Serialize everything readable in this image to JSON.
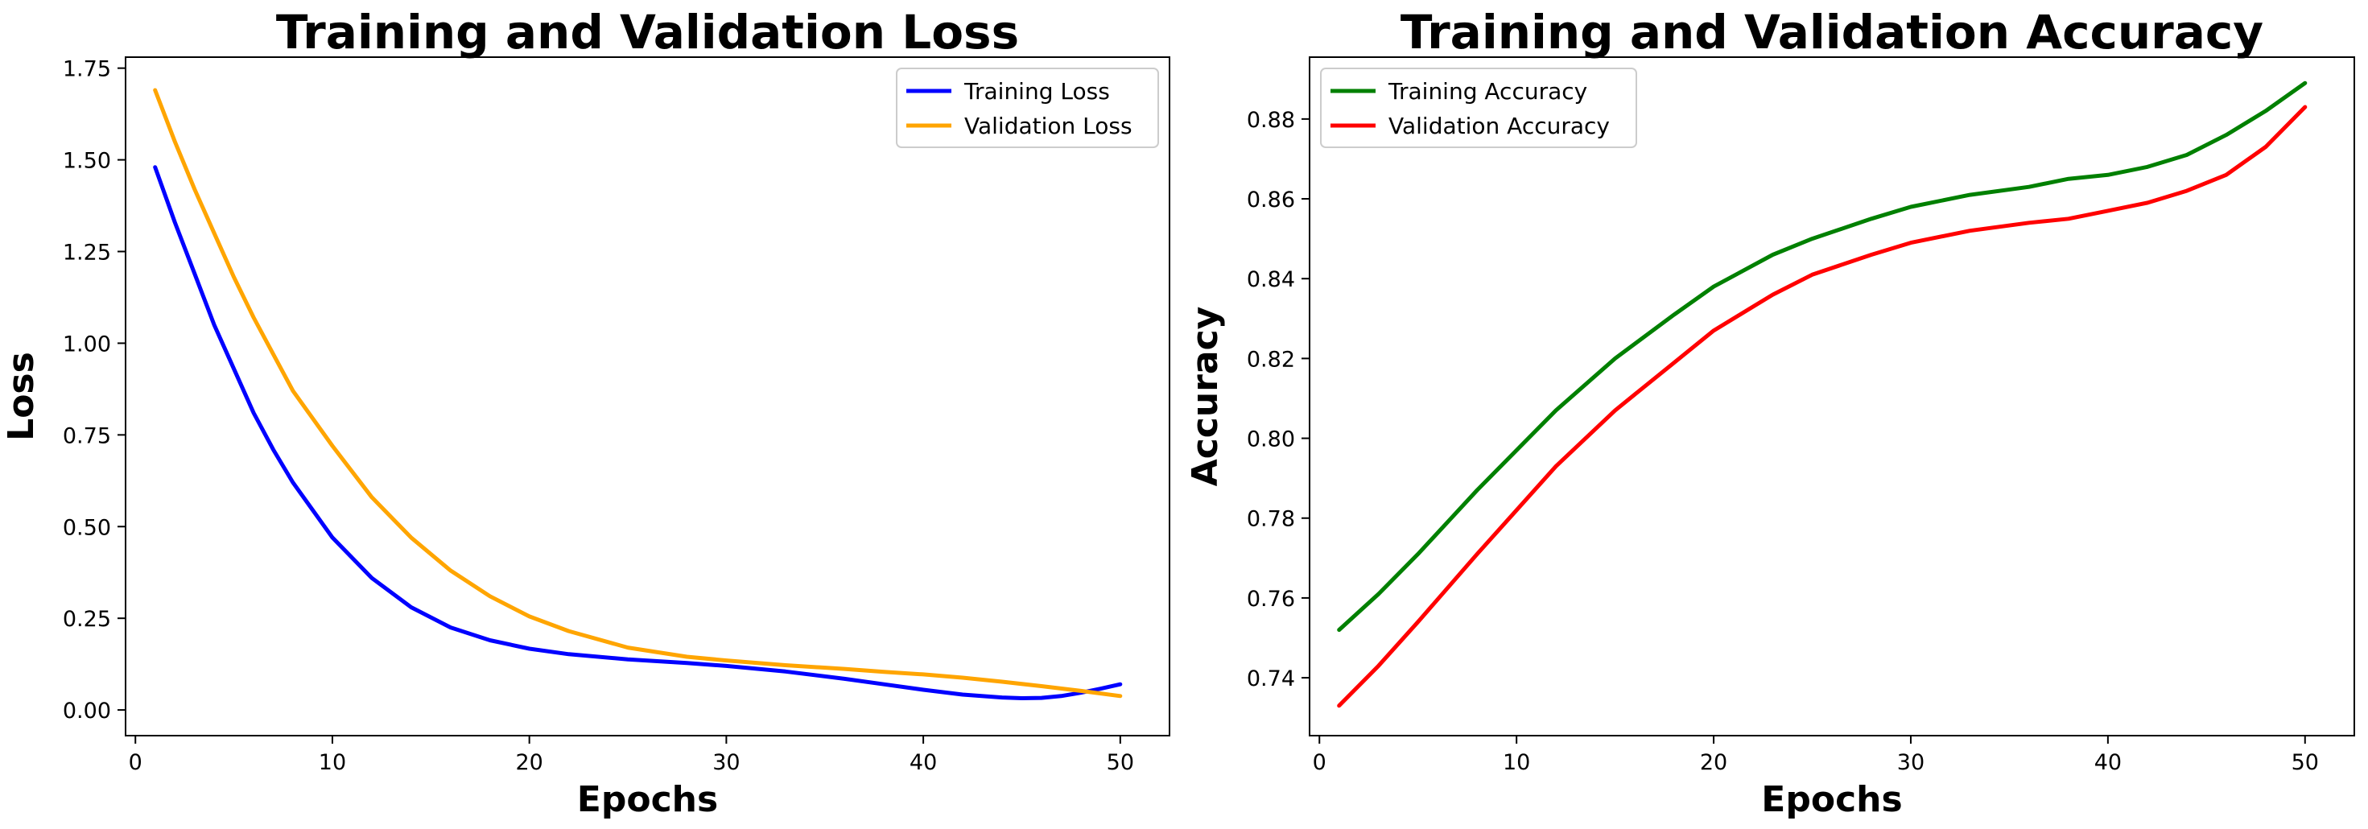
{
  "chart_data": [
    {
      "type": "line",
      "title": "Training and Validation Loss",
      "xlabel": "Epochs",
      "ylabel": "Loss",
      "xlim": [
        -0.5,
        52.5
      ],
      "ylim": [
        -0.07,
        1.78
      ],
      "xticks": [
        0,
        10,
        20,
        30,
        40,
        50
      ],
      "yticks": [
        0.0,
        0.25,
        0.5,
        0.75,
        1.0,
        1.25,
        1.5,
        1.75
      ],
      "ytick_labels": [
        "0.00",
        "0.25",
        "0.50",
        "0.75",
        "1.00",
        "1.25",
        "1.50",
        "1.75"
      ],
      "xtick_labels": [
        "0",
        "10",
        "20",
        "30",
        "40",
        "50"
      ],
      "legend_position": "top-right",
      "grid": false,
      "series": [
        {
          "name": "Training Loss",
          "color": "#0000ff",
          "x": [
            1,
            2,
            3,
            4,
            5,
            6,
            7,
            8,
            10,
            12,
            14,
            16,
            18,
            20,
            22,
            25,
            28,
            30,
            33,
            36,
            38,
            40,
            42,
            44,
            45,
            46,
            47,
            48,
            49,
            50
          ],
          "y": [
            1.48,
            1.33,
            1.19,
            1.05,
            0.93,
            0.81,
            0.71,
            0.62,
            0.47,
            0.36,
            0.28,
            0.225,
            0.19,
            0.167,
            0.152,
            0.138,
            0.128,
            0.12,
            0.105,
            0.085,
            0.07,
            0.055,
            0.042,
            0.034,
            0.032,
            0.033,
            0.038,
            0.047,
            0.058,
            0.07
          ]
        },
        {
          "name": "Validation Loss",
          "color": "#ffa500",
          "x": [
            1,
            2,
            3,
            4,
            5,
            6,
            7,
            8,
            10,
            12,
            14,
            16,
            18,
            20,
            22,
            25,
            28,
            30,
            33,
            36,
            38,
            40,
            42,
            44,
            46,
            48,
            50
          ],
          "y": [
            1.69,
            1.55,
            1.42,
            1.3,
            1.18,
            1.07,
            0.97,
            0.87,
            0.72,
            0.58,
            0.47,
            0.38,
            0.31,
            0.255,
            0.215,
            0.17,
            0.145,
            0.135,
            0.122,
            0.112,
            0.104,
            0.097,
            0.088,
            0.077,
            0.065,
            0.052,
            0.038
          ]
        }
      ]
    },
    {
      "type": "line",
      "title": "Training and Validation Accuracy",
      "xlabel": "Epochs",
      "ylabel": "Accuracy",
      "xlim": [
        -0.5,
        52.5
      ],
      "ylim": [
        0.7255,
        0.8955
      ],
      "xticks": [
        0,
        10,
        20,
        30,
        40,
        50
      ],
      "yticks": [
        0.74,
        0.76,
        0.78,
        0.8,
        0.82,
        0.84,
        0.86,
        0.88
      ],
      "ytick_labels": [
        "0.74",
        "0.76",
        "0.78",
        "0.80",
        "0.82",
        "0.84",
        "0.86",
        "0.88"
      ],
      "xtick_labels": [
        "0",
        "10",
        "20",
        "30",
        "40",
        "50"
      ],
      "legend_position": "top-left",
      "grid": false,
      "series": [
        {
          "name": "Training Accuracy",
          "color": "#008000",
          "x": [
            1,
            3,
            5,
            8,
            10,
            12,
            15,
            18,
            20,
            23,
            25,
            28,
            30,
            33,
            36,
            38,
            40,
            42,
            44,
            46,
            48,
            50
          ],
          "y": [
            0.752,
            0.761,
            0.771,
            0.787,
            0.797,
            0.807,
            0.82,
            0.831,
            0.838,
            0.846,
            0.85,
            0.855,
            0.858,
            0.861,
            0.863,
            0.865,
            0.866,
            0.868,
            0.871,
            0.876,
            0.882,
            0.889
          ]
        },
        {
          "name": "Validation Accuracy",
          "color": "#ff0000",
          "x": [
            1,
            3,
            5,
            8,
            10,
            12,
            15,
            18,
            20,
            23,
            25,
            28,
            30,
            33,
            36,
            38,
            40,
            42,
            44,
            46,
            48,
            50
          ],
          "y": [
            0.733,
            0.743,
            0.754,
            0.771,
            0.782,
            0.793,
            0.807,
            0.819,
            0.827,
            0.836,
            0.841,
            0.846,
            0.849,
            0.852,
            0.854,
            0.855,
            0.857,
            0.859,
            0.862,
            0.866,
            0.873,
            0.883
          ]
        }
      ]
    }
  ]
}
